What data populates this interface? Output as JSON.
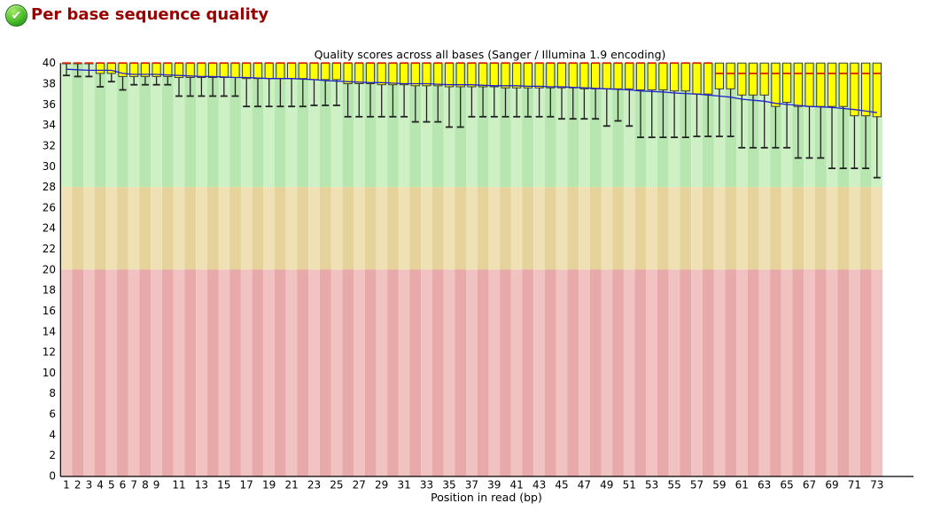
{
  "header": {
    "title": "Per base sequence quality",
    "status": "pass",
    "check_glyph": "✔",
    "title_color": "#990000"
  },
  "chart_data": {
    "type": "boxplot",
    "title": "Quality scores across all bases (Sanger / Illumina 1.9 encoding)",
    "xlabel": "Position in read (bp)",
    "ylabel": "",
    "ylim": [
      0,
      40
    ],
    "grid": "off",
    "legend": "none",
    "n_positions": 73,
    "y_ticks": [
      0,
      2,
      4,
      6,
      8,
      10,
      12,
      14,
      16,
      18,
      20,
      22,
      24,
      26,
      28,
      30,
      32,
      34,
      36,
      38,
      40
    ],
    "x_tick_positions": [
      1,
      2,
      3,
      4,
      5,
      6,
      7,
      8,
      9,
      11,
      13,
      15,
      17,
      19,
      21,
      23,
      25,
      27,
      29,
      31,
      33,
      35,
      37,
      39,
      41,
      43,
      45,
      47,
      49,
      51,
      53,
      55,
      57,
      59,
      61,
      63,
      65,
      67,
      69,
      71,
      73
    ],
    "background_zones": [
      {
        "label": "good",
        "range": [
          28,
          40
        ],
        "color_light": "#cdf0c5",
        "color_dark": "#b8e6b0"
      },
      {
        "label": "medium",
        "range": [
          20,
          28
        ],
        "color_light": "#f0e1b5",
        "color_dark": "#e6d29b"
      },
      {
        "label": "poor",
        "range": [
          0,
          20
        ],
        "color_light": "#f1c2c2",
        "color_dark": "#e7a9a9"
      }
    ],
    "colors": {
      "box_fill": "#ffff00",
      "box_border": "#3a3a3a",
      "median": "#d62500",
      "mean": "#2222cc",
      "whisker": "#222222",
      "axis": "#000000"
    },
    "series": {
      "median": [
        40,
        40,
        40,
        40,
        40,
        40,
        40,
        40,
        40,
        40,
        40,
        40,
        40,
        40,
        40,
        40,
        40,
        40,
        40,
        40,
        40,
        40,
        40,
        40,
        40,
        40,
        40,
        40,
        40,
        40,
        40,
        40,
        40,
        40,
        40,
        40,
        40,
        40,
        40,
        40,
        40,
        40,
        40,
        40,
        40,
        40,
        40,
        40,
        40,
        40,
        40,
        40,
        40,
        40,
        40,
        40,
        40,
        40,
        39,
        39,
        39,
        39,
        39,
        39,
        39,
        39,
        39,
        39,
        39,
        39,
        39,
        39,
        39
      ],
      "q3": [
        40,
        40,
        40,
        40,
        40,
        40,
        40,
        40,
        40,
        40,
        40,
        40,
        40,
        40,
        40,
        40,
        40,
        40,
        40,
        40,
        40,
        40,
        40,
        40,
        40,
        40,
        40,
        40,
        40,
        40,
        40,
        40,
        40,
        40,
        40,
        40,
        40,
        40,
        40,
        40,
        40,
        40,
        40,
        40,
        40,
        40,
        40,
        40,
        40,
        40,
        40,
        40,
        40,
        40,
        40,
        40,
        40,
        40,
        40,
        40,
        40,
        40,
        40,
        40,
        40,
        40,
        40,
        40,
        40,
        40,
        40,
        40,
        40
      ],
      "q1": [
        40,
        40,
        40,
        39,
        39,
        38.7,
        38.7,
        38.7,
        38.7,
        38.7,
        38.6,
        38.6,
        38.6,
        38.6,
        38.6,
        38.6,
        38.5,
        38.5,
        38.5,
        38.5,
        38.5,
        38.5,
        38.4,
        38.4,
        38.4,
        38,
        38,
        38,
        37.9,
        37.9,
        37.9,
        37.8,
        37.8,
        37.8,
        37.7,
        37.7,
        37.7,
        37.7,
        37.7,
        37.6,
        37.6,
        37.6,
        37.6,
        37.6,
        37.6,
        37.6,
        37.5,
        37.5,
        37.5,
        37.5,
        37.5,
        37.4,
        37.4,
        37.4,
        37.3,
        37.3,
        37,
        37,
        37.5,
        37.5,
        36.9,
        36.9,
        36.9,
        35.8,
        36.2,
        35.8,
        35.8,
        35.8,
        35.8,
        35.8,
        34.9,
        34.9,
        34.8
      ],
      "p90": [
        40,
        40,
        40,
        40,
        40,
        40,
        40,
        40,
        40,
        40,
        40,
        40,
        40,
        40,
        40,
        40,
        40,
        40,
        40,
        40,
        40,
        40,
        40,
        40,
        40,
        40,
        40,
        40,
        40,
        40,
        40,
        40,
        40,
        40,
        40,
        40,
        40,
        40,
        40,
        40,
        40,
        40,
        40,
        40,
        40,
        40,
        40,
        40,
        40,
        40,
        40,
        40,
        40,
        40,
        40,
        40,
        40,
        40,
        40,
        40,
        40,
        40,
        40,
        40,
        40,
        40,
        40,
        40,
        40,
        40,
        40,
        40,
        40
      ],
      "p10": [
        38.8,
        38.7,
        38.7,
        37.7,
        38.2,
        37.4,
        37.9,
        37.9,
        37.9,
        37.9,
        36.8,
        36.8,
        36.8,
        36.8,
        36.8,
        36.8,
        35.8,
        35.8,
        35.8,
        35.8,
        35.8,
        35.8,
        35.9,
        35.9,
        35.9,
        34.8,
        34.8,
        34.8,
        34.8,
        34.8,
        34.8,
        34.3,
        34.3,
        34.3,
        33.8,
        33.8,
        34.8,
        34.8,
        34.8,
        34.8,
        34.8,
        34.8,
        34.8,
        34.8,
        34.6,
        34.6,
        34.6,
        34.6,
        33.9,
        34.4,
        33.9,
        32.8,
        32.8,
        32.8,
        32.8,
        32.8,
        32.9,
        32.9,
        32.9,
        32.9,
        31.8,
        31.8,
        31.8,
        31.8,
        31.8,
        30.8,
        30.8,
        30.8,
        29.8,
        29.8,
        29.8,
        29.8,
        28.9
      ],
      "mean": [
        39.4,
        39.35,
        39.3,
        39.3,
        39.3,
        39,
        38.9,
        38.9,
        38.9,
        38.85,
        38.8,
        38.75,
        38.7,
        38.7,
        38.65,
        38.6,
        38.6,
        38.55,
        38.5,
        38.5,
        38.5,
        38.45,
        38.4,
        38.3,
        38.25,
        38.2,
        38.15,
        38.1,
        38.1,
        38.05,
        38,
        38,
        38,
        37.95,
        37.9,
        37.9,
        37.9,
        37.85,
        37.8,
        37.8,
        37.8,
        37.75,
        37.75,
        37.7,
        37.7,
        37.65,
        37.6,
        37.55,
        37.5,
        37.45,
        37.4,
        37.3,
        37.25,
        37.2,
        37.1,
        37.05,
        37,
        36.9,
        36.8,
        36.7,
        36.5,
        36.4,
        36.3,
        36.1,
        36,
        35.9,
        35.8,
        35.75,
        35.7,
        35.6,
        35.5,
        35.35,
        35.2
      ]
    }
  }
}
